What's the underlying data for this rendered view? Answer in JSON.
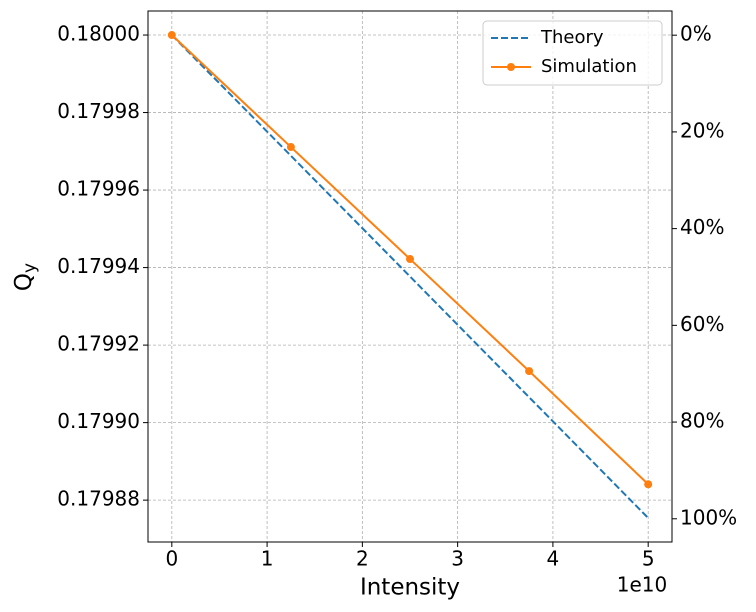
{
  "chart_data": {
    "type": "line",
    "xlabel": "Intensity",
    "ylabel": "Q",
    "ylabel_sub": "y",
    "x_offset_label": "1e10",
    "series": [
      {
        "name": "Theory",
        "color": "#1f77b4",
        "style": "dashed",
        "marker": false,
        "x": [
          0,
          50000000000
        ],
        "values": [
          0.18,
          0.1798754
        ]
      },
      {
        "name": "Simulation",
        "color": "#ff7f0e",
        "style": "solid",
        "marker": true,
        "x": [
          0,
          12500000000,
          25000000000,
          37500000000,
          50000000000
        ],
        "values": [
          0.18,
          0.1799711,
          0.1799422,
          0.1799133,
          0.1798841
        ]
      }
    ],
    "xlim": [
      -2500000000,
      52500000000
    ],
    "xticks": [
      {
        "value": 0,
        "label": "0"
      },
      {
        "value": 10000000000,
        "label": "1"
      },
      {
        "value": 20000000000,
        "label": "2"
      },
      {
        "value": 30000000000,
        "label": "3"
      },
      {
        "value": 40000000000,
        "label": "4"
      },
      {
        "value": 50000000000,
        "label": "5"
      }
    ],
    "ylim": [
      0.1798692,
      0.1800062
    ],
    "yticks": [
      {
        "value": 0.17988,
        "label": "0.17988"
      },
      {
        "value": 0.1799,
        "label": "0.17990"
      },
      {
        "value": 0.17992,
        "label": "0.17992"
      },
      {
        "value": 0.17994,
        "label": "0.17994"
      },
      {
        "value": 0.17996,
        "label": "0.17996"
      },
      {
        "value": 0.17998,
        "label": "0.17998"
      },
      {
        "value": 0.18,
        "label": "0.18000"
      }
    ],
    "y2lim": [
      104.8,
      -5.0
    ],
    "y2ticks": [
      {
        "value": 0,
        "label": "0%"
      },
      {
        "value": 20,
        "label": "20%"
      },
      {
        "value": 40,
        "label": "40%"
      },
      {
        "value": 60,
        "label": "60%"
      },
      {
        "value": 80,
        "label": "80%"
      },
      {
        "value": 100,
        "label": "100%"
      }
    ],
    "grid": true,
    "legend": "upper right"
  }
}
